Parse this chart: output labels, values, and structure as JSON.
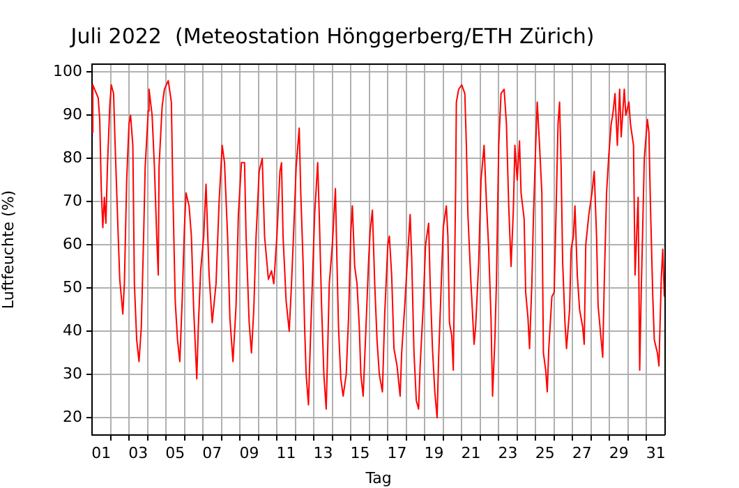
{
  "chart_data": {
    "type": "line",
    "title": "Juli 2022  (Meteostation Hönggerberg/ETH Zürich)",
    "xlabel": "Tag",
    "ylabel": "Luftfeuchte (%)",
    "color": "#ff0000",
    "grid": true,
    "legend": false,
    "xlim": [
      "2022-07-01T00:00",
      "2022-08-01T00:00"
    ],
    "ylim": [
      16,
      101.8
    ],
    "yticks": [
      20,
      30,
      40,
      50,
      60,
      70,
      80,
      90,
      100
    ],
    "xticks": [
      {
        "value": "2022-07-01T12:00",
        "label": "01"
      },
      {
        "value": "2022-07-02T00:00",
        "label": null
      },
      {
        "value": "2022-07-03T00:00",
        "label": null
      },
      {
        "value": "2022-07-03T12:00",
        "label": "03"
      },
      {
        "value": "2022-07-04T00:00",
        "label": null
      },
      {
        "value": "2022-07-05T00:00",
        "label": null
      },
      {
        "value": "2022-07-05T12:00",
        "label": "05"
      },
      {
        "value": "2022-07-06T00:00",
        "label": null
      },
      {
        "value": "2022-07-07T00:00",
        "label": null
      },
      {
        "value": "2022-07-07T12:00",
        "label": "07"
      },
      {
        "value": "2022-07-08T00:00",
        "label": null
      },
      {
        "value": "2022-07-09T00:00",
        "label": null
      },
      {
        "value": "2022-07-09T12:00",
        "label": "09"
      },
      {
        "value": "2022-07-10T00:00",
        "label": null
      },
      {
        "value": "2022-07-11T00:00",
        "label": null
      },
      {
        "value": "2022-07-11T12:00",
        "label": "11"
      },
      {
        "value": "2022-07-12T00:00",
        "label": null
      },
      {
        "value": "2022-07-13T00:00",
        "label": null
      },
      {
        "value": "2022-07-13T12:00",
        "label": "13"
      },
      {
        "value": "2022-07-14T00:00",
        "label": null
      },
      {
        "value": "2022-07-15T00:00",
        "label": null
      },
      {
        "value": "2022-07-15T12:00",
        "label": "15"
      },
      {
        "value": "2022-07-16T00:00",
        "label": null
      },
      {
        "value": "2022-07-17T00:00",
        "label": null
      },
      {
        "value": "2022-07-17T12:00",
        "label": "17"
      },
      {
        "value": "2022-07-18T00:00",
        "label": null
      },
      {
        "value": "2022-07-19T00:00",
        "label": null
      },
      {
        "value": "2022-07-19T12:00",
        "label": "19"
      },
      {
        "value": "2022-07-20T00:00",
        "label": null
      },
      {
        "value": "2022-07-21T00:00",
        "label": null
      },
      {
        "value": "2022-07-21T12:00",
        "label": "21"
      },
      {
        "value": "2022-07-22T00:00",
        "label": null
      },
      {
        "value": "2022-07-23T00:00",
        "label": null
      },
      {
        "value": "2022-07-23T12:00",
        "label": "23"
      },
      {
        "value": "2022-07-24T00:00",
        "label": null
      },
      {
        "value": "2022-07-25T00:00",
        "label": null
      },
      {
        "value": "2022-07-25T12:00",
        "label": "25"
      },
      {
        "value": "2022-07-26T00:00",
        "label": null
      },
      {
        "value": "2022-07-27T00:00",
        "label": null
      },
      {
        "value": "2022-07-27T12:00",
        "label": "27"
      },
      {
        "value": "2022-07-28T00:00",
        "label": null
      },
      {
        "value": "2022-07-29T00:00",
        "label": null
      },
      {
        "value": "2022-07-29T12:00",
        "label": "29"
      },
      {
        "value": "2022-07-30T00:00",
        "label": null
      },
      {
        "value": "2022-07-31T00:00",
        "label": null
      },
      {
        "value": "2022-07-31T12:00",
        "label": "31"
      }
    ],
    "x": [
      "2022-07-01T00:00",
      "2022-07-01T01:00",
      "2022-07-01T08:00",
      "2022-07-01T10:00",
      "2022-07-01T12:00",
      "2022-07-01T14:00",
      "2022-07-01T16:00",
      "2022-07-01T18:00",
      "2022-07-01T20:00",
      "2022-07-01T23:00",
      "2022-07-02T01:00",
      "2022-07-02T04:00",
      "2022-07-02T06:00",
      "2022-07-02T10:00",
      "2022-07-02T12:00",
      "2022-07-02T16:00",
      "2022-07-02T18:00",
      "2022-07-02T21:00",
      "2022-07-03T00:00",
      "2022-07-03T02:00",
      "2022-07-03T05:00",
      "2022-07-03T07:00",
      "2022-07-03T10:00",
      "2022-07-03T13:00",
      "2022-07-03T16:00",
      "2022-07-03T19:00",
      "2022-07-03T21:00",
      "2022-07-04T01:00",
      "2022-07-04T02:00",
      "2022-07-04T06:00",
      "2022-07-04T09:00",
      "2022-07-04T12:00",
      "2022-07-04T14:00",
      "2022-07-04T15:00",
      "2022-07-04T19:00",
      "2022-07-04T22:00",
      "2022-07-05T03:00",
      "2022-07-05T07:00",
      "2022-07-05T09:00",
      "2022-07-05T12:00",
      "2022-07-05T15:00",
      "2022-07-05T18:00",
      "2022-07-05T21:00",
      "2022-07-06T00:00",
      "2022-07-06T02:00",
      "2022-07-06T06:00",
      "2022-07-06T09:00",
      "2022-07-06T12:00",
      "2022-07-06T16:00",
      "2022-07-06T18:00",
      "2022-07-06T21:00",
      "2022-07-07T01:00",
      "2022-07-07T04:00",
      "2022-07-07T08:00",
      "2022-07-07T12:00",
      "2022-07-07T17:00",
      "2022-07-07T21:00",
      "2022-07-08T01:00",
      "2022-07-08T04:00",
      "2022-07-08T08:00",
      "2022-07-08T11:00",
      "2022-07-08T15:00",
      "2022-07-08T19:00",
      "2022-07-08T22:00",
      "2022-07-09T02:00",
      "2022-07-09T06:00",
      "2022-07-09T08:00",
      "2022-07-09T12:00",
      "2022-07-09T15:00",
      "2022-07-09T18:00",
      "2022-07-09T21:00",
      "2022-07-10T01:00",
      "2022-07-10T05:00",
      "2022-07-10T08:00",
      "2022-07-10T13:00",
      "2022-07-10T17:00",
      "2022-07-10T20:00",
      "2022-07-11T00:00",
      "2022-07-11T04:00",
      "2022-07-11T06:00",
      "2022-07-11T08:00",
      "2022-07-11T12:00",
      "2022-07-11T16:00",
      "2022-07-11T19:00",
      "2022-07-11T22:00",
      "2022-07-12T01:00",
      "2022-07-12T05:00",
      "2022-07-12T07:00",
      "2022-07-12T10:00",
      "2022-07-12T12:00",
      "2022-07-12T14:00",
      "2022-07-12T17:00",
      "2022-07-12T19:00",
      "2022-07-12T22:00",
      "2022-07-13T01:00",
      "2022-07-13T05:00",
      "2022-07-13T07:00",
      "2022-07-13T10:00",
      "2022-07-13T13:00",
      "2022-07-13T16:00",
      "2022-07-13T18:00",
      "2022-07-13T20:00",
      "2022-07-14T00:00",
      "2022-07-14T04:00",
      "2022-07-14T06:00",
      "2022-07-14T08:00",
      "2022-07-14T11:00",
      "2022-07-14T14:00",
      "2022-07-14T18:00",
      "2022-07-14T21:00",
      "2022-07-15T00:00",
      "2022-07-15T02:00",
      "2022-07-15T05:00",
      "2022-07-15T08:00",
      "2022-07-15T11:00",
      "2022-07-15T13:00",
      "2022-07-15T16:00",
      "2022-07-15T19:00",
      "2022-07-15T23:00",
      "2022-07-16T01:00",
      "2022-07-16T04:00",
      "2022-07-16T07:00",
      "2022-07-16T10:00",
      "2022-07-16T13:00",
      "2022-07-16T17:00",
      "2022-07-16T20:00",
      "2022-07-17T00:00",
      "2022-07-17T02:00",
      "2022-07-17T05:00",
      "2022-07-17T08:00",
      "2022-07-17T12:00",
      "2022-07-17T16:00",
      "2022-07-17T18:00",
      "2022-07-17T22:00",
      "2022-07-18T01:00",
      "2022-07-18T05:00",
      "2022-07-18T07:00",
      "2022-07-18T10:00",
      "2022-07-18T13:00",
      "2022-07-18T16:00",
      "2022-07-18T18:00",
      "2022-07-18T22:00",
      "2022-07-19T01:00",
      "2022-07-19T05:00",
      "2022-07-19T07:00",
      "2022-07-19T10:00",
      "2022-07-19T13:00",
      "2022-07-19T16:00",
      "2022-07-19T18:00",
      "2022-07-19T21:00",
      "2022-07-20T00:00",
      "2022-07-20T04:00",
      "2022-07-20T06:00",
      "2022-07-20T08:00",
      "2022-07-20T11:00",
      "2022-07-20T13:00",
      "2022-07-20T16:00",
      "2022-07-20T17:00",
      "2022-07-20T20:00",
      "2022-07-21T00:00",
      "2022-07-21T04:00",
      "2022-07-21T06:00",
      "2022-07-21T08:00",
      "2022-07-21T12:00",
      "2022-07-21T16:00",
      "2022-07-21T18:00",
      "2022-07-21T22:00",
      "2022-07-22T01:00",
      "2022-07-22T05:00",
      "2022-07-22T08:00",
      "2022-07-22T11:00",
      "2022-07-22T14:00",
      "2022-07-22T16:00",
      "2022-07-22T19:00",
      "2022-07-22T21:00",
      "2022-07-23T00:00",
      "2022-07-23T03:00",
      "2022-07-23T07:00",
      "2022-07-23T10:00",
      "2022-07-23T13:00",
      "2022-07-23T16:00",
      "2022-07-23T19:00",
      "2022-07-23T21:00",
      "2022-07-24T00:00",
      "2022-07-24T03:00",
      "2022-07-24T05:00",
      "2022-07-24T09:00",
      "2022-07-24T11:00",
      "2022-07-24T14:00",
      "2022-07-24T16:00",
      "2022-07-24T19:00",
      "2022-07-24T21:00",
      "2022-07-25T00:00",
      "2022-07-25T02:00",
      "2022-07-25T05:00",
      "2022-07-25T08:00",
      "2022-07-25T10:00",
      "2022-07-25T13:00",
      "2022-07-25T15:00",
      "2022-07-25T17:00",
      "2022-07-25T21:00",
      "2022-07-26T00:00",
      "2022-07-26T03:00",
      "2022-07-26T05:00",
      "2022-07-26T07:00",
      "2022-07-26T09:00",
      "2022-07-26T11:00",
      "2022-07-26T14:00",
      "2022-07-26T16:00",
      "2022-07-26T20:00",
      "2022-07-26T22:00",
      "2022-07-27T01:00",
      "2022-07-27T03:00",
      "2022-07-27T06:00",
      "2022-07-27T09:00",
      "2022-07-27T13:00",
      "2022-07-27T15:00",
      "2022-07-27T17:00",
      "2022-07-27T21:00",
      "2022-07-28T01:00",
      "2022-07-28T04:00",
      "2022-07-28T07:00",
      "2022-07-28T09:00",
      "2022-07-28T13:00",
      "2022-07-28T15:00",
      "2022-07-28T17:00",
      "2022-07-28T20:00",
      "2022-07-28T23:00",
      "2022-07-29T02:00",
      "2022-07-29T04:00",
      "2022-07-29T07:00",
      "2022-07-29T10:00",
      "2022-07-29T13:00",
      "2022-07-29T15:00",
      "2022-07-29T19:00",
      "2022-07-29T21:00",
      "2022-07-30T01:00",
      "2022-07-30T03:00",
      "2022-07-30T07:00",
      "2022-07-30T09:00",
      "2022-07-30T13:00",
      "2022-07-30T15:00",
      "2022-07-30T17:00",
      "2022-07-30T21:00",
      "2022-07-31T01:00",
      "2022-07-31T03:00",
      "2022-07-31T05:00",
      "2022-07-31T08:00",
      "2022-07-31T10:00",
      "2022-07-31T14:00",
      "2022-07-31T16:00",
      "2022-07-31T19:00",
      "2022-07-31T21:00",
      "2022-07-31T23:00"
    ],
    "values": [
      86,
      97,
      94,
      89,
      73,
      64,
      71,
      65,
      78,
      92,
      97,
      95,
      83,
      62,
      52,
      44,
      51,
      75,
      88,
      90,
      83,
      51,
      38,
      33,
      41,
      62,
      78,
      91,
      96,
      90,
      78,
      62,
      53,
      78,
      92,
      96,
      98,
      93,
      72,
      47,
      38,
      33,
      47,
      64,
      72,
      69,
      62,
      45,
      29,
      41,
      54,
      62,
      74,
      53,
      42,
      51,
      70,
      83,
      79,
      62,
      43,
      33,
      46,
      67,
      79,
      79,
      62,
      42,
      35,
      45,
      62,
      77,
      80,
      62,
      52,
      54,
      51,
      62,
      77,
      79,
      62,
      47,
      40,
      51,
      64,
      78,
      87,
      72,
      56,
      41,
      30,
      23,
      35,
      51,
      67,
      79,
      67,
      46,
      30,
      22,
      36,
      51,
      60,
      73,
      56,
      41,
      29,
      25,
      30,
      43,
      63,
      69,
      55,
      51,
      41,
      30,
      25,
      38,
      56,
      63,
      68,
      51,
      38,
      30,
      26,
      44,
      60,
      62,
      53,
      36,
      32,
      25,
      35,
      46,
      55,
      67,
      57,
      35,
      24,
      22,
      32,
      46,
      60,
      65,
      51,
      36,
      26,
      20,
      34,
      49,
      64,
      69,
      62,
      42,
      39,
      31,
      72,
      93,
      96,
      97,
      95,
      83,
      67,
      51,
      37,
      41,
      56,
      75,
      83,
      70,
      59,
      43,
      25,
      38,
      51,
      83,
      95,
      96,
      88,
      69,
      55,
      68,
      83,
      75,
      84,
      72,
      66,
      49,
      43,
      36,
      51,
      66,
      83,
      93,
      83,
      72,
      35,
      31,
      26,
      36,
      48,
      49,
      72,
      88,
      93,
      78,
      56,
      42,
      36,
      45,
      59,
      62,
      69,
      53,
      45,
      41,
      37,
      60,
      67,
      72,
      77,
      62,
      46,
      38,
      34,
      51,
      72,
      81,
      88,
      90,
      95,
      83,
      96,
      85,
      96,
      90,
      93,
      88,
      83,
      53,
      71,
      31,
      49,
      80,
      89,
      86,
      69,
      48,
      38,
      35,
      32,
      52,
      59,
      48
    ]
  }
}
